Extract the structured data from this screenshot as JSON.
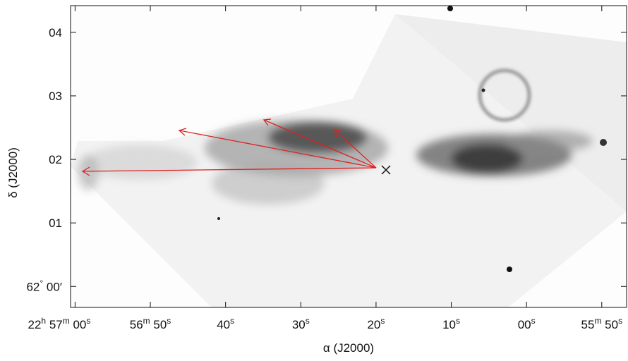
{
  "chart_data": {
    "type": "image",
    "xlabel": "α (J2000)",
    "ylabel": "δ (J2000)",
    "xlim": [
      120.6,
      46.7
    ],
    "ylim": [
      -0.33,
      4.42
    ],
    "xticks": [
      {
        "value": 120,
        "label": "22h 57m 00s"
      },
      {
        "value": 110,
        "label": "56m 50s"
      },
      {
        "value": 100,
        "label": "40s"
      },
      {
        "value": 90,
        "label": "30s"
      },
      {
        "value": 80,
        "label": "20s"
      },
      {
        "value": 70,
        "label": "10s"
      },
      {
        "value": 60,
        "label": "00s"
      },
      {
        "value": 50,
        "label": "55m 50s"
      }
    ],
    "yticks": [
      {
        "value": 0,
        "label": "62° 00′"
      },
      {
        "value": 1,
        "label": "01"
      },
      {
        "value": 2,
        "label": "02"
      },
      {
        "value": 3,
        "label": "03"
      },
      {
        "value": 4,
        "label": "04"
      }
    ]
  }
}
